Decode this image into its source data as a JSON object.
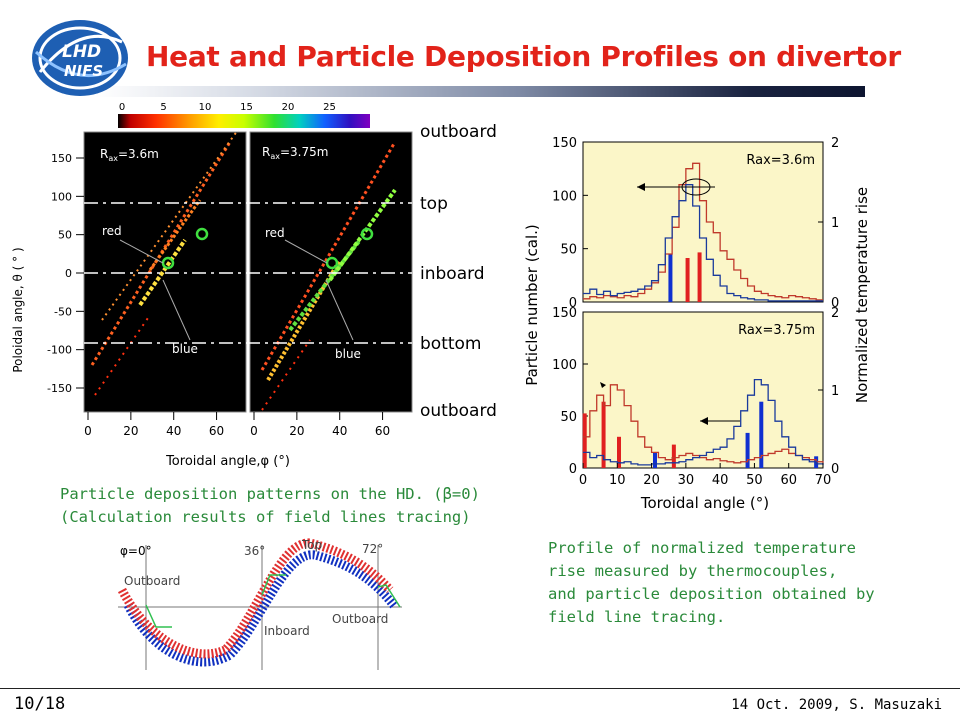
{
  "header": {
    "title": "Heat and Particle Deposition Profiles on divertor",
    "logo_top": "LHD",
    "logo_bottom": "NIFS"
  },
  "colorbar": {
    "ticks": [
      "0",
      "5",
      "10",
      "15",
      "20",
      "25"
    ]
  },
  "left_panel": {
    "panel_a_label": "R",
    "panel_a_sub": "ax",
    "panel_a_value": "=3.6m",
    "panel_b_label": "R",
    "panel_b_sub": "ax",
    "panel_b_value": "=3.75m",
    "red_label": "red",
    "blue_label": "blue",
    "ylabel": "Poloidal angle, θ ( ° )",
    "xlabel": "Toroidal angle,φ (°)",
    "yticks": [
      "150",
      "100",
      "50",
      "0",
      "-50",
      "-100",
      "-150"
    ],
    "xticks_a": [
      "0",
      "20",
      "40",
      "60"
    ],
    "xticks_b": [
      "0",
      "20",
      "40",
      "60"
    ],
    "regions": [
      "outboard",
      "top",
      "inboard",
      "bottom",
      "outboard"
    ]
  },
  "caption_left": {
    "line1": "Particle deposition patterns on the HD. (β=0)",
    "line2": "(Calculation results of field lines tracing)"
  },
  "bottom_diagram": {
    "phi0": "φ=0°",
    "phi36": "36°",
    "phi72": "72°",
    "top": "Top",
    "outboard_left": "Outboard",
    "inboard": "Inboard",
    "outboard_right": "Outboard"
  },
  "chart_data": [
    {
      "type": "line",
      "title": "",
      "annotation": "Rax=3.6m",
      "xlabel": "Toroidal angle (°)",
      "ylabel": "Particle number (cal.)",
      "ylabel_right": "Normalized temperature rise",
      "xlim": [
        0,
        70
      ],
      "ylim": [
        0,
        150
      ],
      "ylim_right": [
        0,
        2
      ],
      "yticks": [
        "0",
        "50",
        "100",
        "150"
      ],
      "yticks_right": [
        "0",
        "1",
        "2"
      ],
      "series": [
        {
          "color": "#c0392b",
          "x": [
            0,
            2,
            4,
            6,
            8,
            10,
            12,
            14,
            16,
            18,
            20,
            22,
            24,
            26,
            28,
            30,
            32,
            34,
            36,
            38,
            40,
            42,
            44,
            46,
            48,
            50,
            52,
            54,
            56,
            58,
            60,
            62,
            64,
            66,
            68,
            70
          ],
          "values": [
            3,
            5,
            4,
            6,
            5,
            4,
            6,
            5,
            8,
            12,
            18,
            28,
            45,
            70,
            110,
            125,
            130,
            95,
            75,
            65,
            48,
            40,
            30,
            22,
            15,
            10,
            8,
            6,
            5,
            4,
            6,
            5,
            4,
            3,
            2,
            2
          ]
        },
        {
          "color": "#1a3a9c",
          "x": [
            0,
            2,
            4,
            6,
            8,
            10,
            12,
            14,
            16,
            18,
            20,
            22,
            24,
            26,
            28,
            30,
            32,
            34,
            36,
            38,
            40,
            42,
            44,
            46,
            48,
            50,
            52,
            54,
            56,
            58,
            60,
            62,
            64,
            66,
            68,
            70
          ],
          "values": [
            8,
            12,
            7,
            10,
            6,
            8,
            9,
            10,
            12,
            15,
            20,
            35,
            60,
            80,
            95,
            110,
            90,
            60,
            40,
            25,
            15,
            8,
            6,
            4,
            3,
            2,
            2,
            1,
            1,
            1,
            1,
            1,
            1,
            1,
            1,
            1
          ]
        }
      ],
      "bars_red": [
        {
          "x": 30.5,
          "v": 0.55
        },
        {
          "x": 34,
          "v": 0.62
        }
      ],
      "bars_blue": [
        {
          "x": 25.5,
          "v": 0.6
        }
      ]
    },
    {
      "type": "line",
      "title": "",
      "annotation": "Rax=3.75m",
      "xlabel": "Toroidal angle (°)",
      "ylabel": "Particle number (cal.)",
      "ylabel_right": "Normalized temperature rise",
      "xlim": [
        0,
        70
      ],
      "ylim": [
        0,
        150
      ],
      "ylim_right": [
        0,
        2
      ],
      "yticks": [
        "0",
        "50",
        "100",
        "150"
      ],
      "yticks_right": [
        "0",
        "1",
        "2"
      ],
      "xticks": [
        "0",
        "10",
        "20",
        "30",
        "40",
        "50",
        "60",
        "70"
      ],
      "series": [
        {
          "color": "#c0392b",
          "x": [
            0,
            2,
            4,
            6,
            8,
            10,
            12,
            14,
            16,
            18,
            20,
            22,
            24,
            26,
            28,
            30,
            32,
            34,
            36,
            38,
            40,
            42,
            44,
            46,
            48,
            50,
            52,
            54,
            56,
            58,
            60,
            62,
            64,
            66,
            68,
            70
          ],
          "values": [
            30,
            55,
            70,
            60,
            80,
            75,
            60,
            45,
            30,
            20,
            15,
            10,
            8,
            10,
            12,
            14,
            12,
            10,
            8,
            9,
            7,
            6,
            5,
            6,
            8,
            10,
            12,
            14,
            16,
            18,
            14,
            12,
            10,
            8,
            6,
            5
          ]
        },
        {
          "color": "#1a3a9c",
          "x": [
            0,
            2,
            4,
            6,
            8,
            10,
            12,
            14,
            16,
            18,
            20,
            22,
            24,
            26,
            28,
            30,
            32,
            34,
            36,
            38,
            40,
            42,
            44,
            46,
            48,
            50,
            52,
            54,
            56,
            58,
            60,
            62,
            64,
            66,
            68,
            70
          ],
          "values": [
            15,
            10,
            12,
            8,
            6,
            5,
            6,
            4,
            3,
            3,
            4,
            4,
            5,
            5,
            6,
            8,
            10,
            12,
            15,
            18,
            20,
            28,
            40,
            55,
            70,
            85,
            80,
            65,
            45,
            30,
            20,
            12,
            8,
            6,
            4,
            3
          ]
        }
      ],
      "bars_red": [
        {
          "x": 0.5,
          "v": 0.7
        },
        {
          "x": 6,
          "v": 0.85
        },
        {
          "x": 10.5,
          "v": 0.4
        },
        {
          "x": 26.5,
          "v": 0.3
        }
      ],
      "bars_blue": [
        {
          "x": 21,
          "v": 0.2
        },
        {
          "x": 48,
          "v": 0.45
        },
        {
          "x": 52,
          "v": 0.85
        },
        {
          "x": 68,
          "v": 0.15
        }
      ]
    }
  ],
  "caption_right": {
    "line1": "Profile of normalized temperature",
    "line2": "rise measured by thermocouples,",
    "line3": "and particle deposition obtained by",
    "line4": "field line tracing."
  },
  "footer": {
    "page": "10/18",
    "date_author": "14 Oct. 2009, S. Masuzaki"
  }
}
